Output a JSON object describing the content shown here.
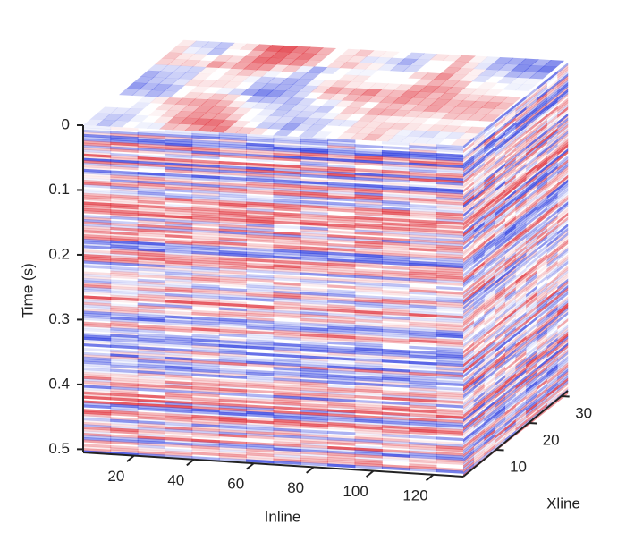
{
  "chart_data": {
    "type": "cube",
    "ylabel": "Time (s)",
    "xlabel": "Inline",
    "zlabel": "Xline",
    "ylim": [
      0,
      0.505
    ],
    "yticks": [
      0,
      0.1,
      0.2,
      0.3,
      0.4,
      0.5
    ],
    "xlim": [
      3,
      130
    ],
    "xticks": [
      20,
      40,
      60,
      80,
      100,
      120
    ],
    "zlim": [
      0,
      32
    ],
    "zticks": [
      10,
      20,
      30
    ],
    "colors": [
      "#e0303a",
      "#3040e0"
    ]
  }
}
